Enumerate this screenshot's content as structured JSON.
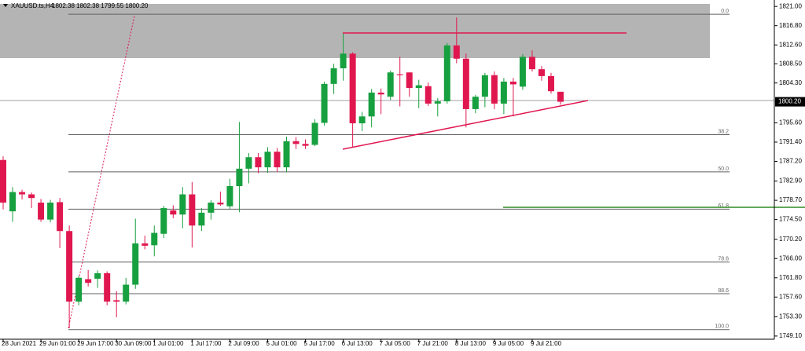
{
  "chart_data": {
    "type": "candlestick",
    "symbol": "XAUUSD.ts,H4",
    "ohlc_info": "1802.38 1802.38 1799.55 1800.20",
    "categories": [
      "28 Jun 2021",
      null,
      null,
      null,
      "29 Jun 01:00",
      null,
      null,
      null,
      "29 Jun 17:00",
      null,
      null,
      null,
      "30 Jun 09:00",
      null,
      null,
      null,
      "1 Jul 01:00",
      null,
      null,
      null,
      "1 Jul 17:00",
      null,
      null,
      null,
      "2 Jul 09:00",
      null,
      null,
      null,
      "5 Jul 01:00",
      null,
      null,
      null,
      "5 Jul 17:00",
      null,
      null,
      null,
      "6 Jul 13:00",
      null,
      null,
      null,
      "7 Jul 05:00",
      null,
      null,
      null,
      "7 Jul 21:00",
      null,
      null,
      null,
      "8 Jul 13:00",
      null,
      null,
      null,
      "9 Jul 05:00",
      null,
      null,
      null,
      "9 Jul 21:00",
      null,
      null,
      null
    ],
    "open": [
      1787.5,
      1776.3,
      1780.5,
      1780.0,
      1778.2,
      1774.5,
      1778.3,
      1772.0,
      1756.6,
      1761.5,
      1761.6,
      1762.8,
      1756.9,
      1756.6,
      1760.3,
      1769.3,
      1768.9,
      1771.4,
      1776.5,
      1775.6,
      1780.0,
      1773.2,
      1776.0,
      1778.2,
      1777.4,
      1781.8,
      1785.6,
      1788.1,
      1785.9,
      1789.3,
      1785.9,
      1791.6,
      1791.0,
      1790.8,
      1795.6,
      1804.1,
      1807.5,
      1810.7,
      1795.5,
      1797.0,
      1802.2,
      1801.3,
      1806.2,
      1806.6,
      1803.2,
      1803.6,
      1799.8,
      1800.3,
      1812.5,
      1809.6,
      1798.6,
      1801.3,
      1806.0,
      1799.8,
      1804.6,
      1803.5,
      1810.0,
      1807.3,
      1805.8,
      1802.38
    ],
    "high": [
      1788.3,
      1781.6,
      1781.0,
      1780.4,
      1779.0,
      1778.8,
      1779.2,
      1773.2,
      1762.2,
      1763.5,
      1763.4,
      1763.2,
      1758.9,
      1761.8,
      1774.7,
      1771.0,
      1773.2,
      1777.5,
      1777.6,
      1781.6,
      1782.7,
      1777.0,
      1778.7,
      1780.6,
      1783.4,
      1795.8,
      1789.0,
      1789.0,
      1790.3,
      1790.1,
      1792.6,
      1792.5,
      1792.0,
      1796.4,
      1804.6,
      1808.5,
      1815.2,
      1811.0,
      1798.0,
      1803.0,
      1803.1,
      1807.0,
      1810.0,
      1806.6,
      1805.0,
      1804.4,
      1801.0,
      1813.0,
      1818.6,
      1810.7,
      1801.7,
      1806.5,
      1806.8,
      1805.4,
      1805.4,
      1810.6,
      1811.4,
      1808.0,
      1806.5,
      1802.38
    ],
    "low": [
      1776.7,
      1774.0,
      1778.9,
      1777.0,
      1774.0,
      1773.9,
      1768.3,
      1750.8,
      1755.8,
      1759.9,
      1759.6,
      1755.8,
      1753.2,
      1756.0,
      1759.4,
      1768.0,
      1766.5,
      1770.5,
      1774.8,
      1772.6,
      1768.4,
      1772.0,
      1774.5,
      1777.5,
      1776.8,
      1776.1,
      1782.4,
      1784.6,
      1784.7,
      1784.9,
      1784.8,
      1789.9,
      1789.9,
      1790.5,
      1795.0,
      1801.9,
      1804.8,
      1790.3,
      1793.8,
      1794.6,
      1797.5,
      1800.6,
      1799.2,
      1801.3,
      1798.8,
      1799.3,
      1797.0,
      1799.8,
      1808.6,
      1794.6,
      1797.7,
      1799.0,
      1798.6,
      1797.5,
      1797.0,
      1802.8,
      1806.8,
      1804.8,
      1802.0,
      1799.55
    ],
    "close": [
      1778.2,
      1780.5,
      1780.0,
      1779.2,
      1774.5,
      1778.2,
      1772.0,
      1756.6,
      1761.8,
      1760.7,
      1762.8,
      1756.6,
      1756.6,
      1760.3,
      1769.3,
      1768.8,
      1771.6,
      1777.0,
      1775.6,
      1780.0,
      1773.2,
      1776.0,
      1778.2,
      1777.8,
      1781.8,
      1785.6,
      1788.1,
      1785.9,
      1789.3,
      1785.9,
      1791.6,
      1791.0,
      1790.6,
      1795.6,
      1804.1,
      1807.5,
      1810.7,
      1795.5,
      1797.0,
      1802.2,
      1801.8,
      1806.6,
      1806.0,
      1803.2,
      1803.8,
      1799.8,
      1800.3,
      1812.5,
      1809.6,
      1798.6,
      1801.3,
      1806.0,
      1799.8,
      1804.6,
      1804.0,
      1810.0,
      1807.3,
      1805.8,
      1802.5,
      1800.2
    ],
    "up_color": "#17a03f",
    "down_color": "#e0174f",
    "ylim": [
      1748.4,
      1822.4
    ],
    "yticks": [
      {
        "value": 1821.0,
        "label": "1821.00"
      },
      {
        "value": 1816.8,
        "label": "1816.80"
      },
      {
        "value": 1812.6,
        "label": "1812.60"
      },
      {
        "value": 1808.5,
        "label": "1808.50"
      },
      {
        "value": 1804.3,
        "label": "1804.30"
      },
      {
        "value": 1795.6,
        "label": "1795.60"
      },
      {
        "value": 1791.4,
        "label": "1791.40"
      },
      {
        "value": 1787.2,
        "label": "1787.20"
      },
      {
        "value": 1782.9,
        "label": "1782.90"
      },
      {
        "value": 1778.7,
        "label": "1778.70"
      },
      {
        "value": 1774.5,
        "label": "1774.50"
      },
      {
        "value": 1770.2,
        "label": "1770.20"
      },
      {
        "value": 1766.0,
        "label": "1766.00"
      },
      {
        "value": 1761.8,
        "label": "1761.80"
      },
      {
        "value": 1757.6,
        "label": "1757.60"
      },
      {
        "value": 1753.3,
        "label": "1753.30"
      },
      {
        "value": 1749.1,
        "label": "1749.10"
      }
    ],
    "current_price": {
      "value": 1800.2,
      "label": "1800.20"
    },
    "fibonacci": {
      "high": 1819.3,
      "low": 1750.5,
      "levels": [
        {
          "value": 0,
          "label": "0.0"
        },
        {
          "value": 38.2,
          "label": "38.2"
        },
        {
          "value": 50,
          "label": "50.0"
        },
        {
          "value": 61.8,
          "label": "61.8"
        },
        {
          "value": 78.6,
          "label": "78.6"
        },
        {
          "value": 88.6,
          "label": "88.6"
        },
        {
          "value": 100,
          "label": "100.0"
        }
      ]
    }
  }
}
